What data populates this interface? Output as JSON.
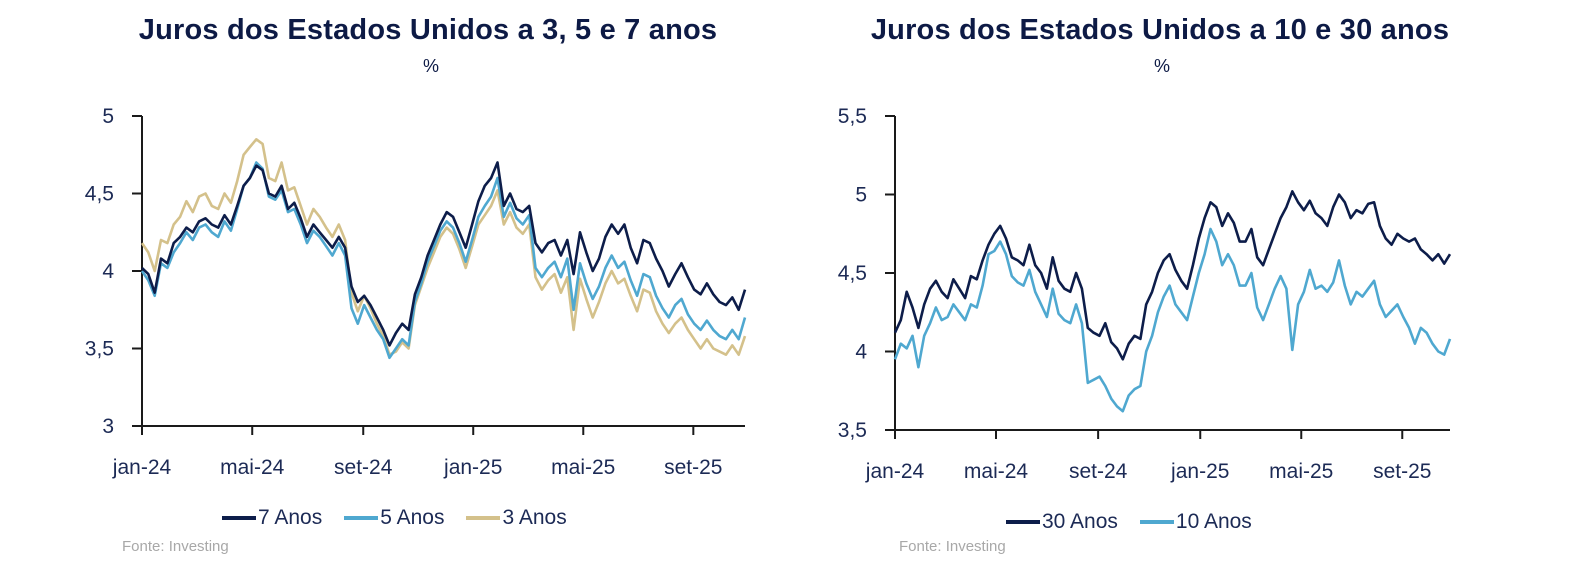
{
  "chart_data": [
    {
      "type": "line",
      "title": "Juros dos Estados Unidos a 3, 5 e 7 anos",
      "subtitle": "%",
      "xlabel": "",
      "ylabel": "",
      "ylim": [
        3,
        5
      ],
      "yticks": [
        3,
        3.5,
        4,
        4.5,
        5
      ],
      "ytick_labels": [
        "3",
        "3,5",
        "4",
        "4,5",
        "5"
      ],
      "xtick_labels": [
        "jan-24",
        "mai-24",
        "set-24",
        "jan-25",
        "mai-25",
        "set-25"
      ],
      "x_start": "2024-01",
      "x_end": "2025-11",
      "x_frequency": "weekly",
      "grid": false,
      "legend_position": "bottom",
      "source": "Fonte: Investing",
      "series": [
        {
          "name": "7 Anos",
          "color": "#0d1d4a",
          "values": [
            4.02,
            3.98,
            3.86,
            4.08,
            4.05,
            4.18,
            4.22,
            4.28,
            4.25,
            4.32,
            4.34,
            4.3,
            4.28,
            4.36,
            4.3,
            4.42,
            4.55,
            4.6,
            4.68,
            4.65,
            4.5,
            4.48,
            4.55,
            4.4,
            4.44,
            4.34,
            4.22,
            4.3,
            4.25,
            4.2,
            4.15,
            4.22,
            4.15,
            3.9,
            3.8,
            3.84,
            3.78,
            3.7,
            3.62,
            3.52,
            3.6,
            3.66,
            3.62,
            3.85,
            3.96,
            4.1,
            4.2,
            4.3,
            4.38,
            4.35,
            4.25,
            4.15,
            4.3,
            4.45,
            4.55,
            4.6,
            4.7,
            4.42,
            4.5,
            4.4,
            4.38,
            4.42,
            4.18,
            4.12,
            4.18,
            4.2,
            4.1,
            4.2,
            3.98,
            4.25,
            4.12,
            4.0,
            4.08,
            4.22,
            4.3,
            4.24,
            4.3,
            4.15,
            4.05,
            4.2,
            4.18,
            4.08,
            4.0,
            3.9,
            3.98,
            4.05,
            3.96,
            3.88,
            3.85,
            3.92,
            3.85,
            3.8,
            3.78,
            3.83,
            3.75,
            3.88
          ]
        },
        {
          "name": "5 Anos",
          "color": "#4fa8d0",
          "values": [
            4.0,
            3.94,
            3.84,
            4.05,
            4.02,
            4.12,
            4.18,
            4.25,
            4.2,
            4.28,
            4.3,
            4.25,
            4.22,
            4.32,
            4.26,
            4.4,
            4.55,
            4.6,
            4.7,
            4.66,
            4.48,
            4.46,
            4.52,
            4.38,
            4.4,
            4.3,
            4.18,
            4.26,
            4.22,
            4.16,
            4.1,
            4.18,
            4.1,
            3.76,
            3.66,
            3.78,
            3.7,
            3.62,
            3.56,
            3.44,
            3.5,
            3.56,
            3.52,
            3.8,
            3.92,
            4.06,
            4.16,
            4.26,
            4.32,
            4.28,
            4.18,
            4.06,
            4.2,
            4.35,
            4.42,
            4.48,
            4.6,
            4.35,
            4.44,
            4.34,
            4.3,
            4.36,
            4.02,
            3.96,
            4.02,
            4.06,
            3.96,
            4.08,
            3.75,
            4.05,
            3.92,
            3.82,
            3.9,
            4.02,
            4.1,
            4.02,
            4.06,
            3.94,
            3.84,
            3.98,
            3.96,
            3.84,
            3.76,
            3.7,
            3.78,
            3.82,
            3.72,
            3.66,
            3.62,
            3.68,
            3.62,
            3.58,
            3.56,
            3.62,
            3.56,
            3.7
          ]
        },
        {
          "name": "3 Anos",
          "color": "#d4c18b",
          "values": [
            4.18,
            4.12,
            4.0,
            4.2,
            4.18,
            4.3,
            4.35,
            4.45,
            4.38,
            4.48,
            4.5,
            4.42,
            4.4,
            4.5,
            4.44,
            4.58,
            4.75,
            4.8,
            4.85,
            4.82,
            4.6,
            4.58,
            4.7,
            4.52,
            4.54,
            4.42,
            4.3,
            4.4,
            4.35,
            4.28,
            4.22,
            4.3,
            4.2,
            3.86,
            3.74,
            3.84,
            3.76,
            3.66,
            3.58,
            3.46,
            3.48,
            3.54,
            3.5,
            3.78,
            3.9,
            4.02,
            4.12,
            4.22,
            4.28,
            4.24,
            4.14,
            4.02,
            4.16,
            4.3,
            4.36,
            4.42,
            4.52,
            4.3,
            4.38,
            4.28,
            4.24,
            4.3,
            3.96,
            3.88,
            3.94,
            3.98,
            3.86,
            3.96,
            3.62,
            3.95,
            3.82,
            3.7,
            3.8,
            3.92,
            4.0,
            3.92,
            3.95,
            3.84,
            3.74,
            3.88,
            3.86,
            3.74,
            3.66,
            3.6,
            3.66,
            3.7,
            3.62,
            3.56,
            3.5,
            3.56,
            3.5,
            3.48,
            3.46,
            3.52,
            3.46,
            3.58
          ]
        }
      ]
    },
    {
      "type": "line",
      "title": "Juros dos Estados Unidos a 10 e 30 anos",
      "subtitle": "%",
      "xlabel": "",
      "ylabel": "",
      "ylim": [
        3.5,
        5.5
      ],
      "yticks": [
        3.5,
        4,
        4.5,
        5,
        5.5
      ],
      "ytick_labels": [
        "3,5",
        "4",
        "4,5",
        "5",
        "5,5"
      ],
      "xtick_labels": [
        "jan-24",
        "mai-24",
        "set-24",
        "jan-25",
        "mai-25",
        "set-25"
      ],
      "x_start": "2024-01",
      "x_end": "2025-11",
      "x_frequency": "weekly",
      "grid": false,
      "legend_position": "bottom",
      "source": "Fonte: Investing",
      "series": [
        {
          "name": "30 Anos",
          "color": "#0d1d4a",
          "values": [
            4.12,
            4.2,
            4.38,
            4.28,
            4.15,
            4.3,
            4.4,
            4.45,
            4.38,
            4.34,
            4.46,
            4.4,
            4.34,
            4.48,
            4.46,
            4.58,
            4.68,
            4.75,
            4.8,
            4.72,
            4.6,
            4.58,
            4.55,
            4.68,
            4.55,
            4.5,
            4.4,
            4.6,
            4.45,
            4.4,
            4.38,
            4.5,
            4.4,
            4.15,
            4.12,
            4.1,
            4.18,
            4.06,
            4.02,
            3.95,
            4.05,
            4.1,
            4.08,
            4.3,
            4.38,
            4.5,
            4.58,
            4.62,
            4.52,
            4.45,
            4.4,
            4.55,
            4.72,
            4.85,
            4.95,
            4.92,
            4.8,
            4.88,
            4.82,
            4.7,
            4.7,
            4.78,
            4.6,
            4.55,
            4.65,
            4.75,
            4.85,
            4.92,
            5.02,
            4.95,
            4.9,
            4.96,
            4.88,
            4.85,
            4.8,
            4.92,
            5.0,
            4.95,
            4.85,
            4.9,
            4.88,
            4.94,
            4.95,
            4.8,
            4.72,
            4.68,
            4.75,
            4.72,
            4.7,
            4.72,
            4.65,
            4.62,
            4.58,
            4.62,
            4.56,
            4.62
          ]
        },
        {
          "name": "10 Anos",
          "color": "#4fa8d0",
          "values": [
            3.95,
            4.05,
            4.02,
            4.1,
            3.9,
            4.1,
            4.18,
            4.28,
            4.2,
            4.22,
            4.3,
            4.25,
            4.2,
            4.3,
            4.28,
            4.42,
            4.62,
            4.64,
            4.7,
            4.62,
            4.48,
            4.44,
            4.42,
            4.52,
            4.38,
            4.3,
            4.22,
            4.4,
            4.24,
            4.2,
            4.18,
            4.3,
            4.18,
            3.8,
            3.82,
            3.84,
            3.78,
            3.7,
            3.65,
            3.62,
            3.72,
            3.76,
            3.78,
            4.0,
            4.1,
            4.25,
            4.35,
            4.42,
            4.3,
            4.25,
            4.2,
            4.35,
            4.5,
            4.62,
            4.78,
            4.7,
            4.55,
            4.62,
            4.55,
            4.42,
            4.42,
            4.5,
            4.28,
            4.2,
            4.3,
            4.4,
            4.48,
            4.4,
            4.01,
            4.3,
            4.38,
            4.52,
            4.4,
            4.42,
            4.38,
            4.44,
            4.58,
            4.42,
            4.3,
            4.38,
            4.35,
            4.4,
            4.45,
            4.3,
            4.22,
            4.26,
            4.3,
            4.22,
            4.15,
            4.05,
            4.15,
            4.12,
            4.05,
            4.0,
            3.98,
            4.08
          ]
        }
      ]
    }
  ],
  "left_panel": {
    "title": "Juros dos Estados Unidos a 3, 5 e 7 anos",
    "subtitle": "%",
    "source": "Fonte: Investing",
    "legend": [
      "7 Anos",
      "5 Anos",
      "3 Anos"
    ]
  },
  "right_panel": {
    "title": "Juros dos Estados Unidos a 10 e 30 anos",
    "subtitle": "%",
    "source": "Fonte: Investing",
    "legend": [
      "30 Anos",
      "10 Anos"
    ]
  }
}
